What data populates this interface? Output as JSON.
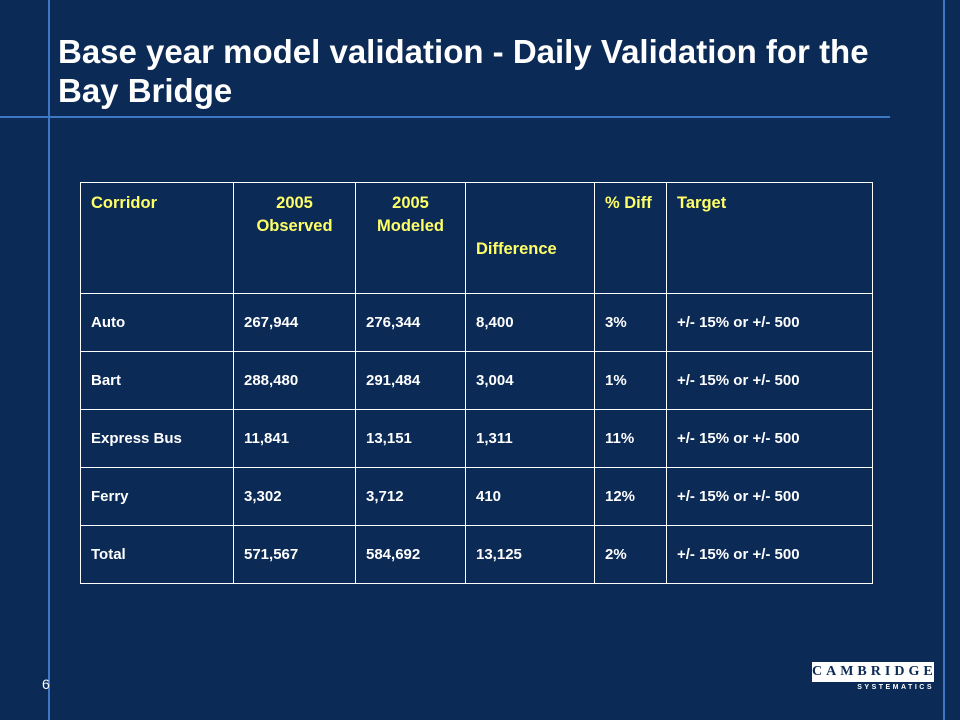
{
  "slide": {
    "title": "Base year model validation - Daily Validation for the Bay Bridge",
    "page_number": "6"
  },
  "table": {
    "headers": [
      "Corridor",
      "2005 Observed",
      "2005 Modeled",
      "Difference",
      "% Diff",
      "Target"
    ],
    "rows": [
      [
        "Auto",
        "267,944",
        "276,344",
        "8,400",
        "3%",
        "+/- 15% or +/- 500"
      ],
      [
        "Bart",
        "288,480",
        "291,484",
        "3,004",
        "1%",
        "+/- 15% or +/- 500"
      ],
      [
        "Express Bus",
        "11,841",
        "13,151",
        "1,311",
        "11%",
        "+/- 15% or +/- 500"
      ],
      [
        "Ferry",
        "3,302",
        "3,712",
        "410",
        "12%",
        "+/- 15% or +/- 500"
      ],
      [
        "Total",
        "571,567",
        "584,692",
        "13,125",
        "2%",
        "+/- 15% or +/- 500"
      ]
    ]
  },
  "logo": {
    "top_text": "CAMBRIDGE",
    "bottom_text": "SYSTEMATICS"
  },
  "colors": {
    "background": "#0b2a56",
    "header_text": "#ffff66",
    "accent_line": "#3e78c4"
  }
}
